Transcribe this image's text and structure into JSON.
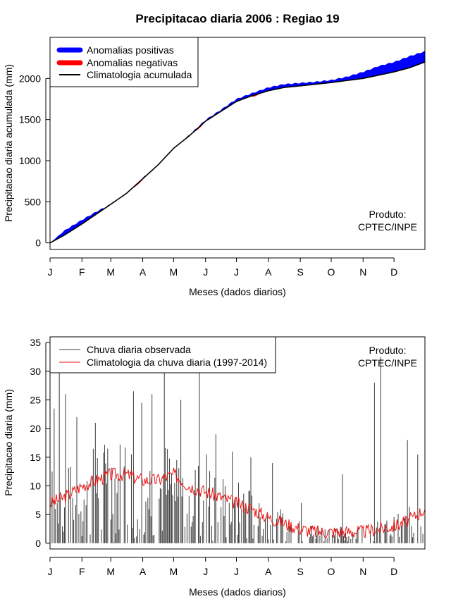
{
  "title": "Precipitacao diaria 2006 : Regiao 19",
  "colors": {
    "positive": "#0000ff",
    "negative": "#ff0000",
    "climatology_line": "#000000",
    "observed": "#3c3c3c",
    "climatology_daily": "#ee1111"
  },
  "chart_data": [
    {
      "type": "area",
      "title": "Precipitacao diaria 2006 : Regiao 19",
      "xlabel": "Meses (dados diarios)",
      "ylabel": "Precipitacao diaria acumulada (mm)",
      "months": [
        "J",
        "F",
        "M",
        "A",
        "M",
        "J",
        "J",
        "A",
        "S",
        "O",
        "N",
        "D"
      ],
      "month_start_day": [
        1,
        32,
        60,
        91,
        121,
        152,
        182,
        213,
        244,
        274,
        305,
        335
      ],
      "xlim": [
        1,
        365
      ],
      "ylim": [
        -80,
        2500
      ],
      "yticks": [
        0,
        500,
        1000,
        1500,
        2000
      ],
      "legend": [
        "Anomalias positivas",
        "Anomalias negativas",
        "Climatologia acumulada"
      ],
      "legend_position": "top-left",
      "annotation": [
        "Produto:",
        "CPTEC/INPE"
      ],
      "climatology_accumulated": {
        "day": [
          1,
          15,
          32,
          46,
          60,
          75,
          91,
          106,
          121,
          136,
          152,
          167,
          182,
          197,
          213,
          228,
          244,
          259,
          274,
          289,
          305,
          320,
          335,
          350,
          365
        ],
        "value": [
          0,
          95,
          230,
          350,
          470,
          600,
          780,
          950,
          1150,
          1300,
          1480,
          1600,
          1720,
          1790,
          1850,
          1890,
          1910,
          1930,
          1950,
          1975,
          2000,
          2040,
          2080,
          2130,
          2200
        ]
      },
      "observed_accumulated": {
        "day": [
          1,
          15,
          32,
          46,
          60,
          75,
          91,
          106,
          121,
          136,
          152,
          167,
          182,
          197,
          213,
          228,
          244,
          259,
          274,
          289,
          305,
          320,
          335,
          350,
          365
        ],
        "value": [
          0,
          150,
          280,
          380,
          470,
          575,
          790,
          940,
          1140,
          1310,
          1495,
          1620,
          1750,
          1820,
          1890,
          1930,
          1945,
          1960,
          1980,
          2020,
          2080,
          2150,
          2200,
          2270,
          2330
        ]
      }
    },
    {
      "type": "bar",
      "xlabel": "Meses (dados diarios)",
      "ylabel": "Precipitacao diaria (mm)",
      "months": [
        "J",
        "F",
        "M",
        "A",
        "M",
        "J",
        "J",
        "A",
        "S",
        "O",
        "N",
        "D"
      ],
      "month_start_day": [
        1,
        32,
        60,
        91,
        121,
        152,
        182,
        213,
        244,
        274,
        305,
        335
      ],
      "xlim": [
        1,
        365
      ],
      "ylim": [
        -1,
        36
      ],
      "yticks": [
        0,
        5,
        10,
        15,
        20,
        25,
        30,
        35
      ],
      "legend": [
        "Chuva diaria observada",
        "Climatologia da chuva diaria (1997-2014)"
      ],
      "legend_position": "top-left",
      "annotation": [
        "Produto:",
        "CPTEC/INPE"
      ],
      "observed_peaks": {
        "day": [
          3,
          5,
          10,
          16,
          27,
          45,
          57,
          82,
          90,
          100,
          112,
          128,
          146,
          153,
          162,
          178,
          196,
          217,
          245,
          285,
          316,
          322,
          348,
          358
        ],
        "value": [
          12.5,
          23.5,
          30.5,
          26,
          22,
          21,
          16.5,
          26.5,
          24.5,
          26,
          30.5,
          25,
          30,
          15.5,
          19,
          16,
          15,
          14,
          7,
          12,
          28,
          32.5,
          18,
          15.5
        ]
      },
      "climatology_daily": {
        "day": [
          1,
          15,
          32,
          46,
          60,
          75,
          91,
          106,
          121,
          136,
          152,
          167,
          182,
          197,
          213,
          228,
          244,
          259,
          274,
          289,
          305,
          320,
          335,
          350,
          365
        ],
        "value": [
          7,
          8,
          10,
          11,
          12,
          12,
          11,
          11,
          12,
          10,
          9,
          8,
          7,
          6,
          4.5,
          3.5,
          2.5,
          2,
          2,
          2,
          2,
          2.5,
          3,
          4,
          6
        ]
      }
    }
  ]
}
